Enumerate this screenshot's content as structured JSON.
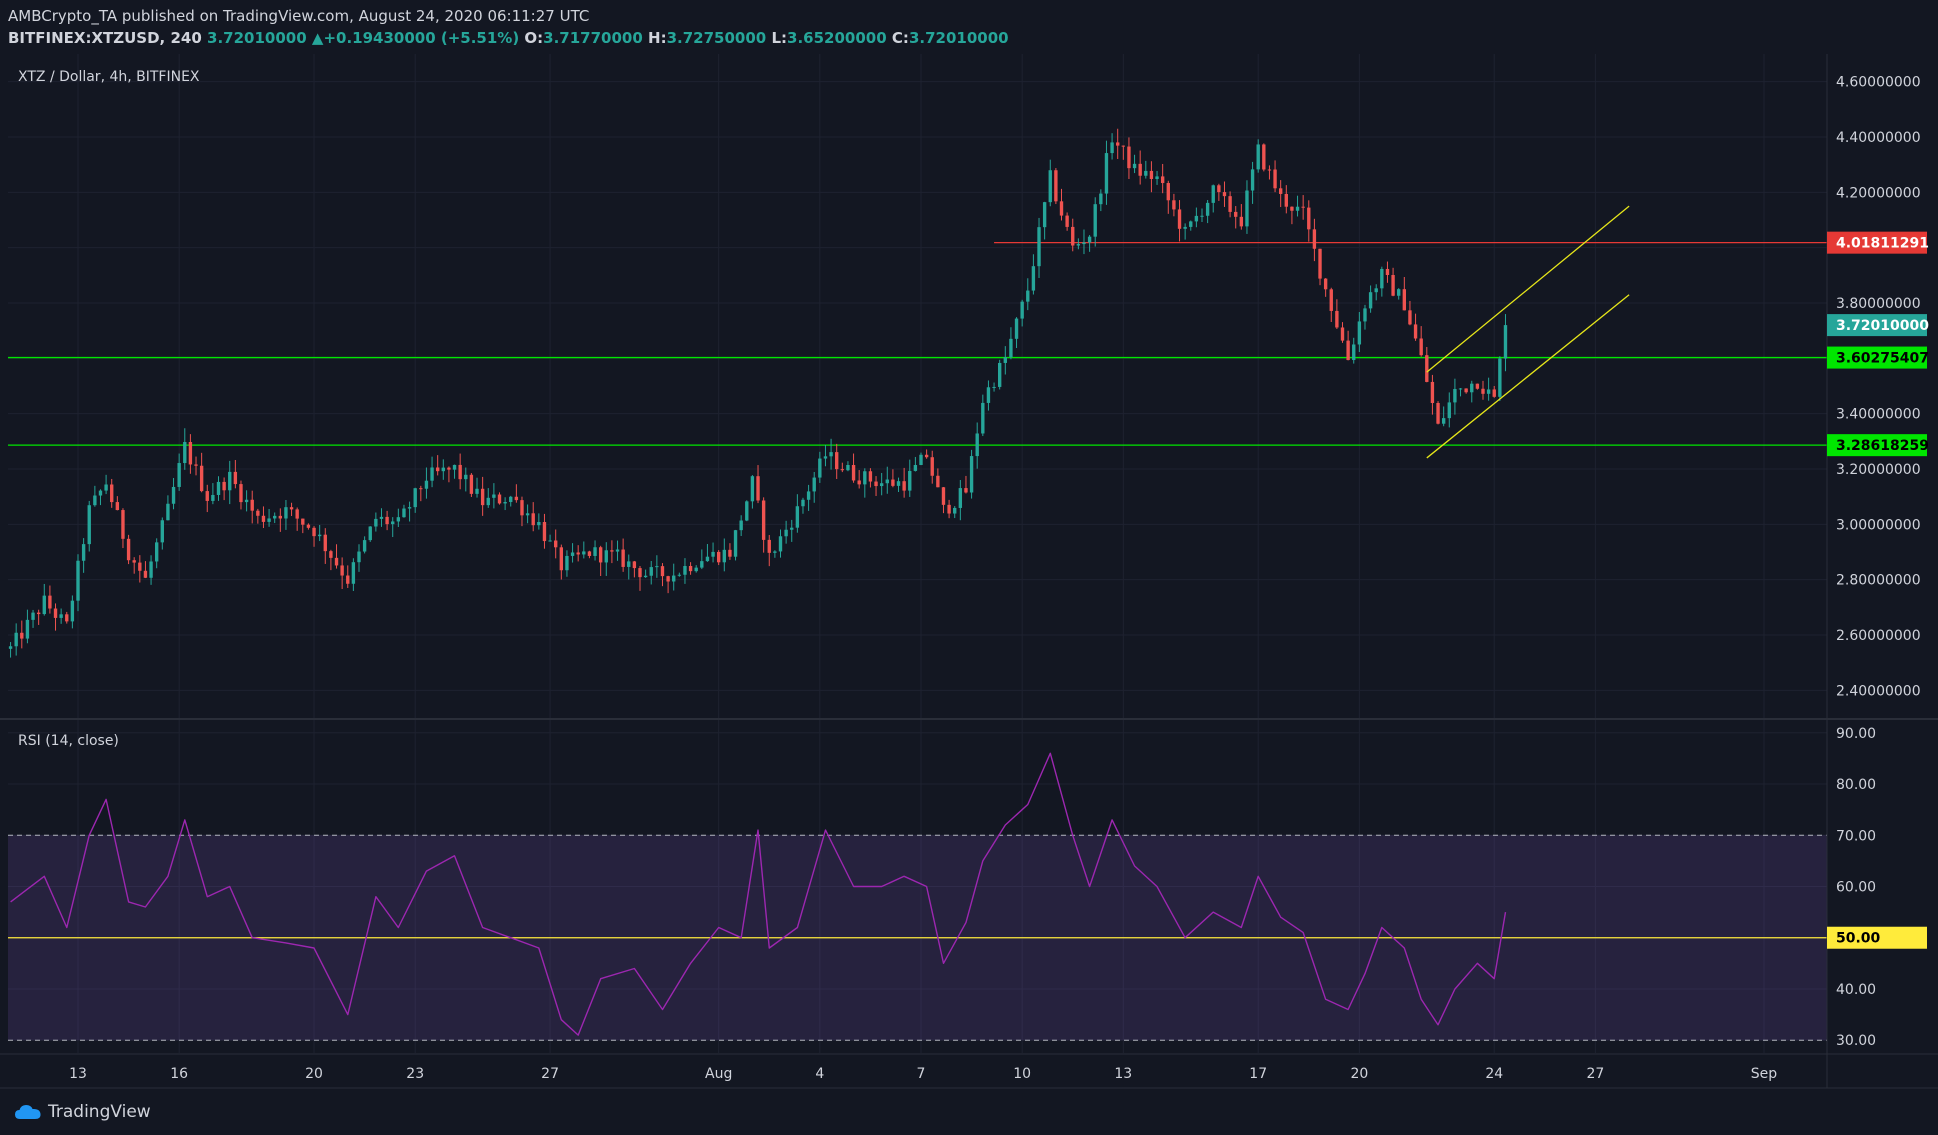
{
  "header": {
    "publisher_line": "AMBCrypto_TA published on TradingView.com, August 24, 2020 06:11:27 UTC",
    "symbol": "BITFINEX:XTZUSD, 240",
    "last": "3.72010000",
    "change": "+0.19430000 (+5.51%)",
    "o_label": "O:",
    "o": "3.71770000",
    "h_label": "H:",
    "h": "3.72750000",
    "l_label": "L:",
    "l": "3.65200000",
    "c_label": "C:",
    "c": "3.72010000"
  },
  "main_legend": "XTZ / Dollar, 4h, BITFINEX",
  "rsi_legend": "RSI (14, close)",
  "footer": {
    "brand": "TradingView"
  },
  "colors": {
    "up": "#26a69a",
    "down": "#ef5350",
    "background": "#131722",
    "support": "#00e600",
    "resistance": "#e53935",
    "channel": "#e6e61a",
    "rsi": "#9c27b0",
    "rsi_mid": "#ffeb3b"
  },
  "chart_data": [
    {
      "type": "candlestick",
      "title": "XTZ / Dollar, 4h, BITFINEX",
      "interval_hours": 4,
      "ylim": [
        2.3,
        4.7
      ],
      "y_ticks": [
        "2.40000000",
        "2.60000000",
        "2.80000000",
        "3.00000000",
        "3.20000000",
        "3.40000000",
        "3.60000000",
        "3.80000000",
        "4.00000000",
        "4.20000000",
        "4.40000000",
        "4.60000000"
      ],
      "x_ticks": [
        "13",
        "16",
        "20",
        "23",
        "27",
        "Aug",
        "4",
        "7",
        "10",
        "13",
        "17",
        "20",
        "24",
        "27",
        "Sep"
      ],
      "x_tick_dates": [
        "2020-07-13",
        "2020-07-16",
        "2020-07-20",
        "2020-07-23",
        "2020-07-27",
        "2020-08-01",
        "2020-08-04",
        "2020-08-07",
        "2020-08-10",
        "2020-08-13",
        "2020-08-17",
        "2020-08-20",
        "2020-08-24",
        "2020-08-27",
        "2020-09-01"
      ],
      "price_path": [
        [
          "2020-07-11 00:00",
          2.55
        ],
        [
          "2020-07-12 00:00",
          2.72
        ],
        [
          "2020-07-12 16:00",
          2.63
        ],
        [
          "2020-07-13 08:00",
          3.05
        ],
        [
          "2020-07-13 20:00",
          3.15
        ],
        [
          "2020-07-14 12:00",
          2.9
        ],
        [
          "2020-07-15 00:00",
          2.8
        ],
        [
          "2020-07-15 16:00",
          3.05
        ],
        [
          "2020-07-16 04:00",
          3.28
        ],
        [
          "2020-07-16 20:00",
          3.1
        ],
        [
          "2020-07-17 12:00",
          3.17
        ],
        [
          "2020-07-18 08:00",
          3.02
        ],
        [
          "2020-07-19 04:00",
          3.05
        ],
        [
          "2020-07-20 00:00",
          2.98
        ],
        [
          "2020-07-21 00:00",
          2.8
        ],
        [
          "2020-07-21 20:00",
          3.02
        ],
        [
          "2020-07-22 12:00",
          3.0
        ],
        [
          "2020-07-23 08:00",
          3.17
        ],
        [
          "2020-07-24 04:00",
          3.2
        ],
        [
          "2020-07-25 00:00",
          3.08
        ],
        [
          "2020-07-25 20:00",
          3.1
        ],
        [
          "2020-07-26 16:00",
          3.0
        ],
        [
          "2020-07-27 08:00",
          2.85
        ],
        [
          "2020-07-28 04:00",
          2.9
        ],
        [
          "2020-07-29 00:00",
          2.88
        ],
        [
          "2020-07-29 20:00",
          2.82
        ],
        [
          "2020-07-30 16:00",
          2.82
        ],
        [
          "2020-07-31 12:00",
          2.88
        ],
        [
          "2020-08-01 08:00",
          2.9
        ],
        [
          "2020-08-02 00:00",
          3.15
        ],
        [
          "2020-08-02 12:00",
          2.88
        ],
        [
          "2020-08-03 08:00",
          3.05
        ],
        [
          "2020-08-04 04:00",
          3.25
        ],
        [
          "2020-08-05 00:00",
          3.18
        ],
        [
          "2020-08-05 20:00",
          3.15
        ],
        [
          "2020-08-06 12:00",
          3.15
        ],
        [
          "2020-08-07 04:00",
          3.25
        ],
        [
          "2020-08-07 16:00",
          3.05
        ],
        [
          "2020-08-08 08:00",
          3.12
        ],
        [
          "2020-08-08 20:00",
          3.45
        ],
        [
          "2020-08-09 12:00",
          3.6
        ],
        [
          "2020-08-10 04:00",
          3.85
        ],
        [
          "2020-08-10 20:00",
          4.25
        ],
        [
          "2020-08-11 12:00",
          4.0
        ],
        [
          "2020-08-12 00:00",
          4.05
        ],
        [
          "2020-08-12 16:00",
          4.4
        ],
        [
          "2020-08-13 08:00",
          4.28
        ],
        [
          "2020-08-14 00:00",
          4.25
        ],
        [
          "2020-08-14 20:00",
          4.05
        ],
        [
          "2020-08-15 16:00",
          4.2
        ],
        [
          "2020-08-16 12:00",
          4.1
        ],
        [
          "2020-08-17 00:00",
          4.35
        ],
        [
          "2020-08-17 16:00",
          4.18
        ],
        [
          "2020-08-18 08:00",
          4.12
        ],
        [
          "2020-08-19 00:00",
          3.85
        ],
        [
          "2020-08-19 16:00",
          3.6
        ],
        [
          "2020-08-20 04:00",
          3.8
        ],
        [
          "2020-08-20 16:00",
          3.9
        ],
        [
          "2020-08-21 08:00",
          3.8
        ],
        [
          "2020-08-21 20:00",
          3.6
        ],
        [
          "2020-08-22 08:00",
          3.35
        ],
        [
          "2020-08-22 20:00",
          3.48
        ],
        [
          "2020-08-23 12:00",
          3.52
        ],
        [
          "2020-08-24 00:00",
          3.45
        ],
        [
          "2020-08-24 08:00",
          3.72
        ]
      ],
      "horizontal_levels": [
        {
          "value": 4.01811291,
          "label": "4.01811291",
          "color": "#e53935"
        },
        {
          "value": 3.60275407,
          "label": "3.60275407",
          "color": "#00e600"
        },
        {
          "value": 3.28618259,
          "label": "3.28618259",
          "color": "#00e600"
        }
      ],
      "last_price": {
        "value": 3.7201,
        "label": "3.72010000"
      },
      "channel": {
        "lower": [
          [
            "2020-08-22 00:00",
            3.24
          ],
          [
            "2020-08-28 00:00",
            3.83
          ]
        ],
        "upper": [
          [
            "2020-08-22 00:00",
            3.55
          ],
          [
            "2020-08-28 00:00",
            4.15
          ]
        ]
      }
    },
    {
      "type": "line",
      "title": "RSI (14, close)",
      "ylim": [
        27.5,
        92.5
      ],
      "y_ticks": [
        "30.00",
        "40.00",
        "50.00",
        "60.00",
        "70.00",
        "80.00",
        "90.00"
      ],
      "bands": [
        30,
        70
      ],
      "midline": {
        "value": 50,
        "label": "50.00"
      },
      "series": [
        {
          "points": [
            [
              "2020-07-11 00:00",
              57
            ],
            [
              "2020-07-12 00:00",
              62
            ],
            [
              "2020-07-12 16:00",
              52
            ],
            [
              "2020-07-13 08:00",
              70
            ],
            [
              "2020-07-13 20:00",
              77
            ],
            [
              "2020-07-14 12:00",
              57
            ],
            [
              "2020-07-15 00:00",
              56
            ],
            [
              "2020-07-15 16:00",
              62
            ],
            [
              "2020-07-16 04:00",
              73
            ],
            [
              "2020-07-16 20:00",
              58
            ],
            [
              "2020-07-17 12:00",
              60
            ],
            [
              "2020-07-18 04:00",
              50
            ],
            [
              "2020-07-19 04:00",
              49
            ],
            [
              "2020-07-20 00:00",
              48
            ],
            [
              "2020-07-21 00:00",
              35
            ],
            [
              "2020-07-21 20:00",
              58
            ],
            [
              "2020-07-22 12:00",
              52
            ],
            [
              "2020-07-23 08:00",
              63
            ],
            [
              "2020-07-24 04:00",
              66
            ],
            [
              "2020-07-25 00:00",
              52
            ],
            [
              "2020-07-25 20:00",
              50
            ],
            [
              "2020-07-26 16:00",
              48
            ],
            [
              "2020-07-27 08:00",
              34
            ],
            [
              "2020-07-27 20:00",
              31
            ],
            [
              "2020-07-28 12:00",
              42
            ],
            [
              "2020-07-29 12:00",
              44
            ],
            [
              "2020-07-30 08:00",
              36
            ],
            [
              "2020-07-31 04:00",
              45
            ],
            [
              "2020-08-01 00:00",
              52
            ],
            [
              "2020-08-01 16:00",
              50
            ],
            [
              "2020-08-02 04:00",
              71
            ],
            [
              "2020-08-02 12:00",
              48
            ],
            [
              "2020-08-03 08:00",
              52
            ],
            [
              "2020-08-04 04:00",
              71
            ],
            [
              "2020-08-05 00:00",
              60
            ],
            [
              "2020-08-05 20:00",
              60
            ],
            [
              "2020-08-06 12:00",
              62
            ],
            [
              "2020-08-07 04:00",
              60
            ],
            [
              "2020-08-07 16:00",
              45
            ],
            [
              "2020-08-08 08:00",
              53
            ],
            [
              "2020-08-08 20:00",
              65
            ],
            [
              "2020-08-09 12:00",
              72
            ],
            [
              "2020-08-10 04:00",
              76
            ],
            [
              "2020-08-10 20:00",
              86
            ],
            [
              "2020-08-11 12:00",
              70
            ],
            [
              "2020-08-12 00:00",
              60
            ],
            [
              "2020-08-12 16:00",
              73
            ],
            [
              "2020-08-13 08:00",
              64
            ],
            [
              "2020-08-14 00:00",
              60
            ],
            [
              "2020-08-14 20:00",
              50
            ],
            [
              "2020-08-15 16:00",
              55
            ],
            [
              "2020-08-16 12:00",
              52
            ],
            [
              "2020-08-17 00:00",
              62
            ],
            [
              "2020-08-17 16:00",
              54
            ],
            [
              "2020-08-18 08:00",
              51
            ],
            [
              "2020-08-19 00:00",
              38
            ],
            [
              "2020-08-19 16:00",
              36
            ],
            [
              "2020-08-20 04:00",
              43
            ],
            [
              "2020-08-20 16:00",
              52
            ],
            [
              "2020-08-21 08:00",
              48
            ],
            [
              "2020-08-21 20:00",
              38
            ],
            [
              "2020-08-22 08:00",
              33
            ],
            [
              "2020-08-22 20:00",
              40
            ],
            [
              "2020-08-23 12:00",
              45
            ],
            [
              "2020-08-24 00:00",
              42
            ],
            [
              "2020-08-24 08:00",
              55
            ]
          ]
        }
      ]
    }
  ]
}
